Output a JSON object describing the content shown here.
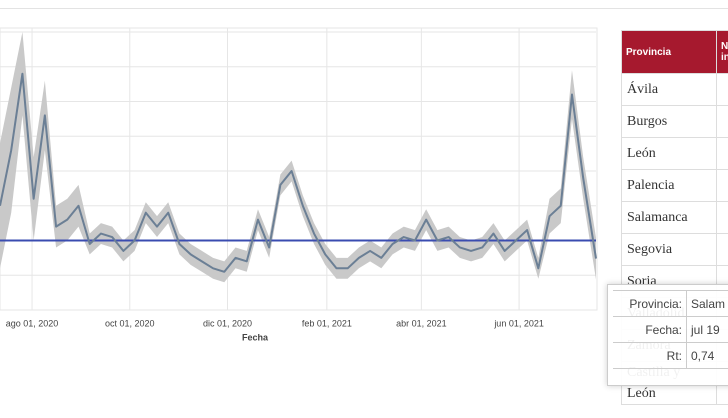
{
  "chart_data": {
    "type": "line",
    "x_label": "Fecha",
    "x": [
      "2020-07-12",
      "2020-07-19",
      "2020-07-26",
      "2020-08-02",
      "2020-08-09",
      "2020-08-16",
      "2020-08-23",
      "2020-08-30",
      "2020-09-06",
      "2020-09-13",
      "2020-09-20",
      "2020-09-27",
      "2020-10-04",
      "2020-10-11",
      "2020-10-18",
      "2020-10-25",
      "2020-11-01",
      "2020-11-08",
      "2020-11-15",
      "2020-11-22",
      "2020-11-29",
      "2020-12-06",
      "2020-12-13",
      "2020-12-20",
      "2020-12-27",
      "2021-01-03",
      "2021-01-10",
      "2021-01-17",
      "2021-01-24",
      "2021-01-31",
      "2021-02-07",
      "2021-02-14",
      "2021-02-21",
      "2021-02-28",
      "2021-03-07",
      "2021-03-14",
      "2021-03-21",
      "2021-03-28",
      "2021-04-04",
      "2021-04-11",
      "2021-04-18",
      "2021-04-25",
      "2021-05-02",
      "2021-05-09",
      "2021-05-16",
      "2021-05-23",
      "2021-05-30",
      "2021-06-06",
      "2021-06-13",
      "2021-06-20",
      "2021-06-27",
      "2021-07-04",
      "2021-07-11",
      "2021-07-19"
    ],
    "series": [
      {
        "color": "#6b7f95",
        "values": [
          1.5,
          2.3,
          3.4,
          1.6,
          2.8,
          1.2,
          1.3,
          1.5,
          0.95,
          1.1,
          1.05,
          0.85,
          1.0,
          1.4,
          1.2,
          1.4,
          0.95,
          0.8,
          0.7,
          0.6,
          0.55,
          0.75,
          0.7,
          1.3,
          0.9,
          1.8,
          2.0,
          1.5,
          1.1,
          0.8,
          0.6,
          0.6,
          0.75,
          0.85,
          0.75,
          0.95,
          1.05,
          1.0,
          1.3,
          1.0,
          1.05,
          0.9,
          0.85,
          0.9,
          1.1,
          0.85,
          1.0,
          1.15,
          0.6,
          1.35,
          1.5,
          3.1,
          1.9,
          0.74
        ]
      }
    ],
    "band": {
      "color": "#c9c9c9",
      "lower": [
        0.6,
        1.4,
        2.8,
        1.0,
        2.3,
        0.9,
        1.0,
        1.2,
        0.8,
        0.95,
        0.9,
        0.7,
        0.85,
        1.25,
        1.05,
        1.25,
        0.8,
        0.65,
        0.55,
        0.45,
        0.4,
        0.6,
        0.55,
        1.15,
        0.75,
        1.65,
        1.85,
        1.35,
        0.95,
        0.65,
        0.45,
        0.45,
        0.6,
        0.7,
        0.6,
        0.8,
        0.9,
        0.85,
        1.15,
        0.85,
        0.9,
        0.75,
        0.7,
        0.75,
        0.95,
        0.7,
        0.85,
        1.0,
        0.45,
        1.1,
        1.25,
        2.75,
        1.6,
        0.44
      ],
      "upper": [
        2.4,
        3.2,
        4.0,
        2.2,
        3.3,
        1.5,
        1.6,
        1.8,
        1.1,
        1.25,
        1.2,
        1.0,
        1.15,
        1.55,
        1.35,
        1.55,
        1.1,
        0.95,
        0.85,
        0.75,
        0.7,
        0.9,
        0.85,
        1.45,
        1.05,
        1.95,
        2.15,
        1.65,
        1.25,
        0.95,
        0.75,
        0.75,
        0.9,
        1.0,
        0.9,
        1.1,
        1.2,
        1.15,
        1.45,
        1.15,
        1.2,
        1.05,
        1.0,
        1.05,
        1.25,
        1.0,
        1.15,
        1.3,
        0.75,
        1.6,
        1.75,
        3.45,
        2.2,
        1.04
      ]
    },
    "hline": {
      "value": 1,
      "color": "#3a4cb0"
    },
    "xlim": [
      "2020-07-12",
      "2021-07-19"
    ],
    "xticks": [
      {
        "value": "2020-08-01",
        "label": "ago 01, 2020"
      },
      {
        "value": "2020-10-01",
        "label": "oct 01, 2020"
      },
      {
        "value": "2020-12-01",
        "label": "dic 01, 2020"
      },
      {
        "value": "2021-02-01",
        "label": "feb 01, 2021"
      },
      {
        "value": "2021-04-01",
        "label": "abr 01, 2021"
      },
      {
        "value": "2021-06-01",
        "label": "jun 01, 2021"
      }
    ],
    "ylim": [
      0,
      4
    ],
    "yticks": [
      0,
      0.5,
      1,
      1.5,
      2,
      2.5,
      3,
      3.5,
      4
    ],
    "grid": true
  },
  "table": {
    "header": [
      "Provincia",
      [
        "N",
        "in"
      ]
    ],
    "rows": [
      "Ávila",
      "Burgos",
      "León",
      "Palencia",
      "Salamanca",
      "Segovia",
      "Soria",
      "Valladolid",
      "Zamora",
      [
        "Castilla y",
        "León"
      ]
    ]
  },
  "tooltip": {
    "rows": [
      [
        "Provincia:",
        "Salam"
      ],
      [
        "Fecha:",
        "jul 19"
      ],
      [
        "Rt:",
        "0,74"
      ]
    ]
  }
}
